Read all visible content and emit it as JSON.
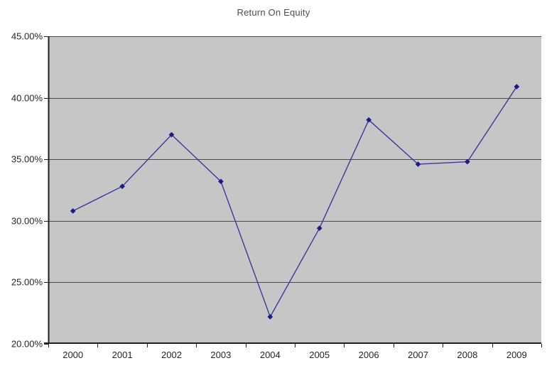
{
  "page": {
    "background": "#ffffff"
  },
  "chart_data": {
    "type": "line",
    "title": "Return On Equity",
    "series_name": "Return On Equity",
    "categories": [
      "2000",
      "2001",
      "2002",
      "2003",
      "2004",
      "2005",
      "2006",
      "2007",
      "2008",
      "2009"
    ],
    "values": [
      30.8,
      32.8,
      37.0,
      33.2,
      22.2,
      29.4,
      38.2,
      34.6,
      34.8,
      40.9
    ],
    "units": "percent",
    "xlabel": "",
    "ylabel": "",
    "ylim": [
      20,
      45
    ],
    "y_ticks": [
      {
        "label": "45.00%",
        "value": 45
      },
      {
        "label": "40.00%",
        "value": 40
      },
      {
        "label": "35.00%",
        "value": 35
      },
      {
        "label": "30.00%",
        "value": 30
      },
      {
        "label": "25.00%",
        "value": 25
      },
      {
        "label": "20.00%",
        "value": 20
      }
    ],
    "grid": true,
    "legend": "none",
    "marker": "diamond",
    "colors": {
      "line": "#3a3a9c",
      "marker": "#1b1b8a",
      "plot_background": "#c6c6c6",
      "gridline": "#4a4a4a",
      "axis": "#1f1f1f",
      "title_text": "#4d4d4d",
      "tick_text": "#262626"
    }
  }
}
